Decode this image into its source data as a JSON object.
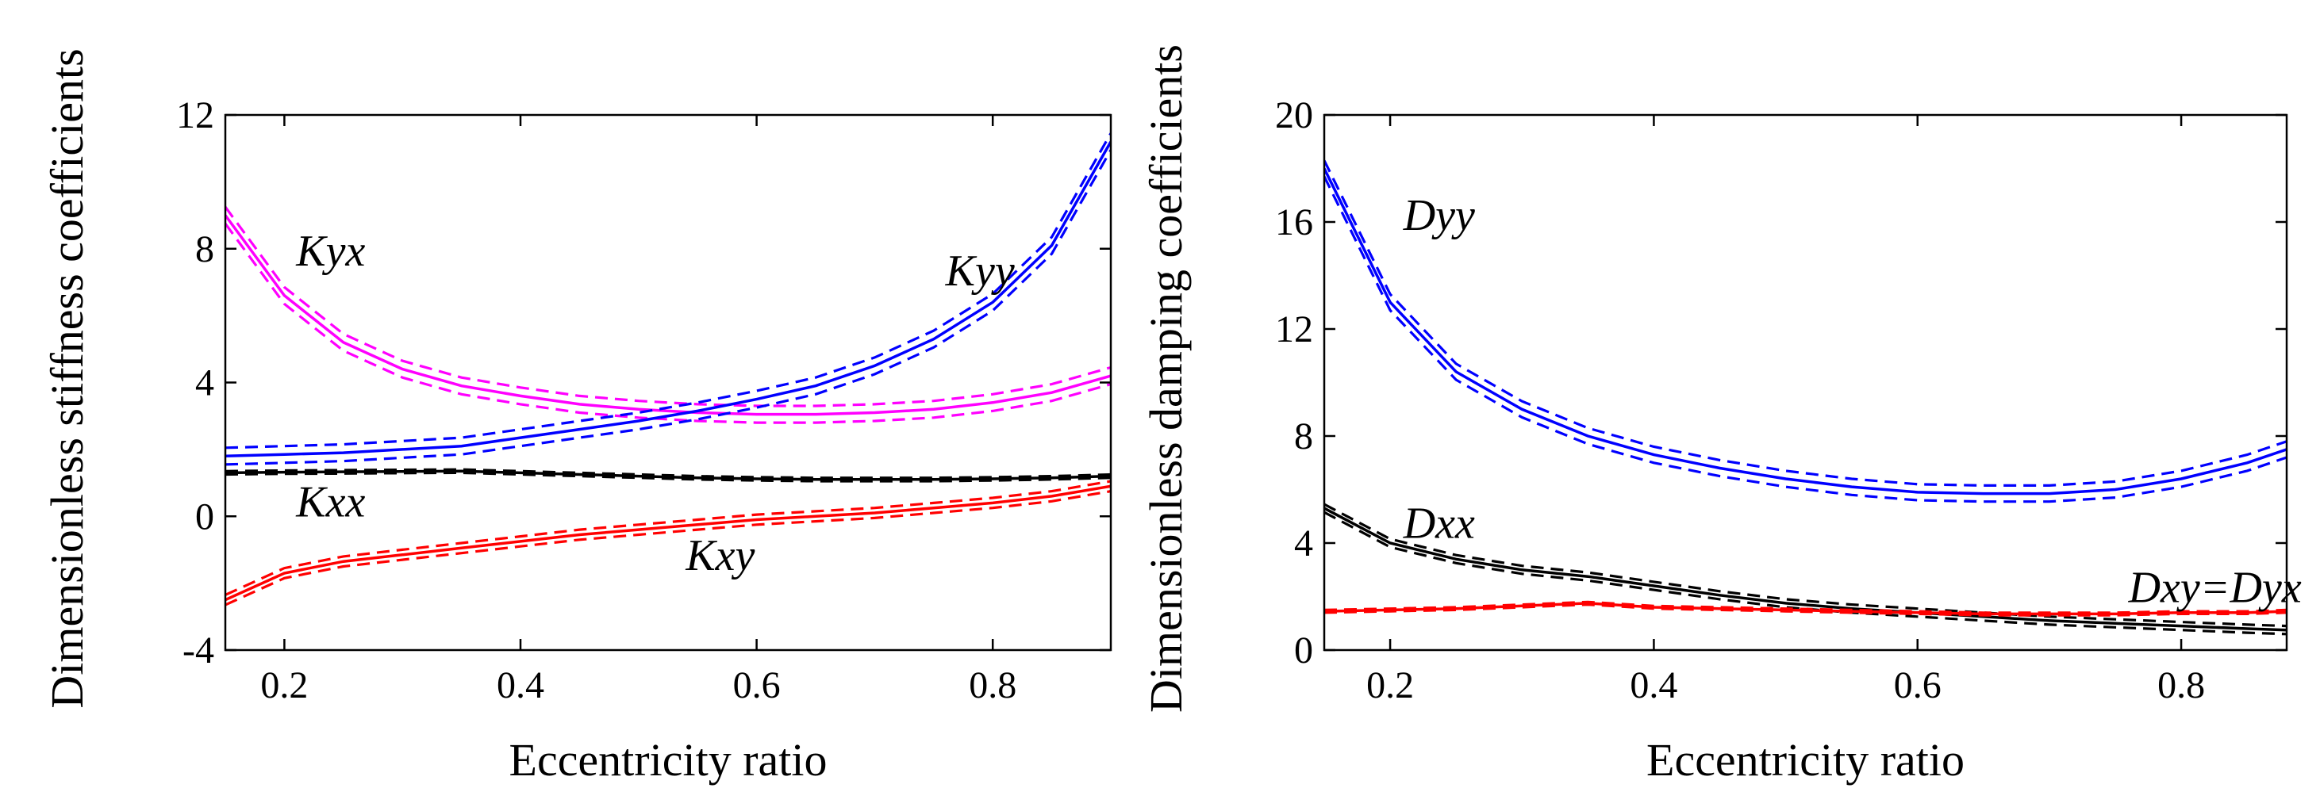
{
  "chart_data": [
    {
      "type": "line",
      "xlabel": "Eccentricity ratio",
      "ylabel": "Dimensionless stiffness coefficients",
      "xlim": [
        0.15,
        0.9
      ],
      "ylim": [
        -4,
        12
      ],
      "xticks": [
        0.2,
        0.4,
        0.6,
        0.8
      ],
      "xtick_labels": [
        "0.2",
        "0.4",
        "0.6",
        "0.8"
      ],
      "yticks": [
        -4,
        0,
        4,
        8,
        12
      ],
      "ytick_labels": [
        "-4",
        "0",
        "4",
        "8",
        "12"
      ],
      "grid": false,
      "series": [
        {
          "name": "Kyx",
          "color": "#ff00ff",
          "x": [
            0.15,
            0.2,
            0.25,
            0.3,
            0.35,
            0.4,
            0.45,
            0.5,
            0.55,
            0.6,
            0.65,
            0.7,
            0.75,
            0.8,
            0.85,
            0.9
          ],
          "y": [
            9.0,
            6.6,
            5.2,
            4.4,
            3.9,
            3.6,
            3.35,
            3.2,
            3.1,
            3.05,
            3.05,
            3.1,
            3.2,
            3.4,
            3.7,
            4.2
          ],
          "band": 0.25
        },
        {
          "name": "Kyy",
          "color": "#0000ff",
          "x": [
            0.15,
            0.2,
            0.25,
            0.3,
            0.35,
            0.4,
            0.45,
            0.5,
            0.55,
            0.6,
            0.65,
            0.7,
            0.75,
            0.8,
            0.85,
            0.9
          ],
          "y": [
            1.8,
            1.85,
            1.9,
            2.0,
            2.1,
            2.35,
            2.6,
            2.85,
            3.15,
            3.5,
            3.9,
            4.5,
            5.3,
            6.4,
            8.1,
            11.2
          ],
          "band": 0.25
        },
        {
          "name": "Kxx",
          "color": "#000000",
          "x": [
            0.15,
            0.2,
            0.25,
            0.3,
            0.35,
            0.4,
            0.45,
            0.5,
            0.55,
            0.6,
            0.65,
            0.7,
            0.75,
            0.8,
            0.85,
            0.9
          ],
          "y": [
            1.3,
            1.32,
            1.33,
            1.34,
            1.35,
            1.3,
            1.25,
            1.2,
            1.15,
            1.12,
            1.1,
            1.1,
            1.1,
            1.12,
            1.15,
            1.2
          ],
          "band": 0.05
        },
        {
          "name": "Kxy",
          "color": "#ff0000",
          "x": [
            0.15,
            0.2,
            0.25,
            0.3,
            0.35,
            0.4,
            0.45,
            0.5,
            0.55,
            0.6,
            0.65,
            0.7,
            0.75,
            0.8,
            0.85,
            0.9
          ],
          "y": [
            -2.5,
            -1.7,
            -1.35,
            -1.15,
            -0.95,
            -0.75,
            -0.55,
            -0.4,
            -0.25,
            -0.1,
            0.0,
            0.1,
            0.25,
            0.4,
            0.6,
            0.9
          ],
          "band": 0.15
        }
      ],
      "annotations": [
        {
          "text": "Kyx",
          "x": 0.21,
          "y": 7.5
        },
        {
          "text": "Kyy",
          "x": 0.76,
          "y": 6.9
        },
        {
          "text": "Kxx",
          "x": 0.21,
          "y": 0.0
        },
        {
          "text": "Kxy",
          "x": 0.54,
          "y": -1.6
        }
      ]
    },
    {
      "type": "line",
      "xlabel": "Eccentricity ratio",
      "ylabel": "Dimensionless damping coefficients",
      "xlim": [
        0.15,
        0.88
      ],
      "ylim": [
        0,
        20
      ],
      "xticks": [
        0.2,
        0.4,
        0.6,
        0.8
      ],
      "xtick_labels": [
        "0.2",
        "0.4",
        "0.6",
        "0.8"
      ],
      "yticks": [
        0,
        4,
        8,
        12,
        16,
        20
      ],
      "ytick_labels": [
        "0",
        "4",
        "8",
        "12",
        "16",
        "20"
      ],
      "grid": false,
      "series": [
        {
          "name": "Dyy",
          "color": "#0000ff",
          "x": [
            0.15,
            0.2,
            0.25,
            0.3,
            0.35,
            0.4,
            0.45,
            0.5,
            0.55,
            0.6,
            0.65,
            0.7,
            0.75,
            0.8,
            0.85,
            0.88
          ],
          "y": [
            18.0,
            13.0,
            10.4,
            9.0,
            8.0,
            7.3,
            6.8,
            6.4,
            6.1,
            5.9,
            5.85,
            5.85,
            6.0,
            6.4,
            7.0,
            7.5
          ],
          "band": 0.3
        },
        {
          "name": "Dxx",
          "color": "#000000",
          "x": [
            0.15,
            0.2,
            0.25,
            0.3,
            0.35,
            0.4,
            0.45,
            0.5,
            0.55,
            0.6,
            0.65,
            0.7,
            0.75,
            0.8,
            0.85,
            0.88
          ],
          "y": [
            5.3,
            4.0,
            3.4,
            3.0,
            2.75,
            2.4,
            2.05,
            1.75,
            1.55,
            1.4,
            1.25,
            1.1,
            1.0,
            0.9,
            0.8,
            0.75
          ],
          "band": 0.15
        },
        {
          "name": "Dxy=Dyx",
          "color": "#ff0000",
          "x": [
            0.15,
            0.2,
            0.25,
            0.3,
            0.35,
            0.4,
            0.45,
            0.5,
            0.55,
            0.6,
            0.65,
            0.7,
            0.75,
            0.8,
            0.85,
            0.88
          ],
          "y": [
            1.45,
            1.5,
            1.55,
            1.65,
            1.75,
            1.6,
            1.55,
            1.5,
            1.45,
            1.4,
            1.35,
            1.35,
            1.35,
            1.4,
            1.4,
            1.45
          ],
          "band": 0.05
        }
      ],
      "annotations": [
        {
          "text": "Dyy",
          "x": 0.21,
          "y": 15.7
        },
        {
          "text": "Dxx",
          "x": 0.21,
          "y": 4.2
        },
        {
          "text": "Dxy=Dyx",
          "x": 0.76,
          "y": 1.8
        }
      ]
    }
  ]
}
